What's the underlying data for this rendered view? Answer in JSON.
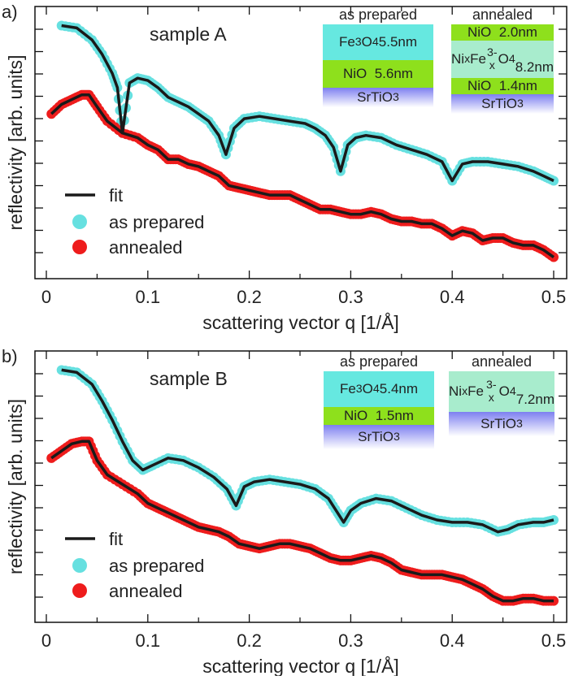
{
  "chart_data": [
    {
      "type": "scatter",
      "panel_label": "a)",
      "title": "sample A",
      "xlabel": "scattering vector q [1/Å]",
      "ylabel": "reflectivity [arb. units]",
      "xlim": [
        0,
        0.5
      ],
      "ylim": [
        0,
        11.4
      ],
      "xticks": [
        "0",
        "0.1",
        "0.2",
        "0.3",
        "0.4",
        "0.5"
      ],
      "xtick_values": [
        0,
        0.1,
        0.2,
        0.3,
        0.4,
        0.5
      ],
      "legend": {
        "position": "bottom-left",
        "fit": "fit",
        "as_prepared": "as prepared",
        "annealed": "annealed"
      },
      "colors": {
        "as_prepared": "#66e0e0",
        "annealed": "#ee1c1c",
        "fit": "#1a1a1a"
      },
      "series": [
        {
          "name": "as prepared",
          "q": [
            0.015,
            0.03,
            0.045,
            0.055,
            0.065,
            0.07,
            0.075,
            0.082,
            0.09,
            0.1,
            0.11,
            0.12,
            0.13,
            0.14,
            0.15,
            0.16,
            0.17,
            0.177,
            0.185,
            0.195,
            0.21,
            0.225,
            0.24,
            0.255,
            0.265,
            0.275,
            0.283,
            0.29,
            0.297,
            0.305,
            0.315,
            0.33,
            0.345,
            0.36,
            0.375,
            0.39,
            0.4,
            0.41,
            0.42,
            0.435,
            0.45,
            0.465,
            0.48,
            0.49,
            0.5
          ],
          "values": [
            10.6,
            10.5,
            10.0,
            9.4,
            8.6,
            8.0,
            6.1,
            8.2,
            8.4,
            8.3,
            8.0,
            7.6,
            7.4,
            7.2,
            6.9,
            6.6,
            6.0,
            5.2,
            6.3,
            6.7,
            6.8,
            6.7,
            6.6,
            6.5,
            6.3,
            6.0,
            5.5,
            4.5,
            5.6,
            5.9,
            6.0,
            5.9,
            5.6,
            5.4,
            5.2,
            4.9,
            4.1,
            4.8,
            4.9,
            4.9,
            4.8,
            4.7,
            4.5,
            4.3,
            4.1
          ]
        },
        {
          "name": "annealed",
          "q": [
            0.005,
            0.015,
            0.025,
            0.035,
            0.042,
            0.05,
            0.06,
            0.075,
            0.09,
            0.1,
            0.11,
            0.12,
            0.13,
            0.14,
            0.15,
            0.16,
            0.17,
            0.18,
            0.19,
            0.2,
            0.21,
            0.22,
            0.23,
            0.24,
            0.25,
            0.26,
            0.27,
            0.28,
            0.29,
            0.3,
            0.31,
            0.32,
            0.33,
            0.34,
            0.35,
            0.36,
            0.37,
            0.38,
            0.39,
            0.4,
            0.41,
            0.42,
            0.43,
            0.44,
            0.45,
            0.46,
            0.47,
            0.48,
            0.49,
            0.5
          ],
          "values": [
            6.9,
            7.3,
            7.5,
            7.7,
            7.7,
            7.2,
            6.6,
            6.1,
            5.9,
            5.6,
            5.4,
            5.0,
            5.0,
            4.8,
            4.7,
            4.5,
            4.3,
            3.9,
            3.8,
            3.7,
            3.6,
            3.5,
            3.5,
            3.5,
            3.3,
            3.1,
            2.9,
            2.9,
            2.8,
            2.7,
            2.7,
            2.8,
            2.7,
            2.5,
            2.4,
            2.4,
            2.3,
            2.3,
            2.1,
            1.8,
            2.0,
            1.9,
            1.6,
            1.7,
            1.7,
            1.5,
            1.4,
            1.4,
            1.2,
            0.9
          ]
        }
      ],
      "insets": [
        {
          "heading": "as prepared",
          "layers": [
            {
              "html": "Fe<sub>3</sub>O<sub>4</sub> 5.5nm",
              "color": "#66e8e0"
            },
            {
              "html": "NiO&nbsp; 5.6nm",
              "color": "#8ee01c"
            },
            {
              "html": "SrTiO<sub>3</sub>",
              "color": "gradient"
            }
          ]
        },
        {
          "heading": "annealed",
          "layers": [
            {
              "html": "NiO&nbsp; 2.0nm",
              "color": "#8ee01c"
            },
            {
              "html": "Ni<sub>x</sub>Fe<sub>3-x</sub>O<sub>4</sub><br>8.2nm",
              "color": "#a8eccd"
            },
            {
              "html": "NiO&nbsp; 1.4nm",
              "color": "#8ee01c"
            },
            {
              "html": "SrTiO<sub>3</sub>",
              "color": "gradient"
            }
          ]
        }
      ]
    },
    {
      "type": "scatter",
      "panel_label": "b)",
      "title": "sample B",
      "xlabel": "scattering vector q [1/Å]",
      "ylabel": "reflectivity [arb. units]",
      "xlim": [
        0,
        0.5
      ],
      "ylim": [
        0,
        11.4
      ],
      "xticks": [
        "0",
        "0.1",
        "0.2",
        "0.3",
        "0.4",
        "0.5"
      ],
      "xtick_values": [
        0,
        0.1,
        0.2,
        0.3,
        0.4,
        0.5
      ],
      "legend": {
        "position": "bottom-left",
        "fit": "fit",
        "as_prepared": "as prepared",
        "annealed": "annealed"
      },
      "colors": {
        "as_prepared": "#66e0e0",
        "annealed": "#ee1c1c",
        "fit": "#1a1a1a"
      },
      "series": [
        {
          "name": "as prepared",
          "q": [
            0.015,
            0.03,
            0.045,
            0.055,
            0.065,
            0.075,
            0.085,
            0.095,
            0.105,
            0.12,
            0.135,
            0.15,
            0.165,
            0.178,
            0.187,
            0.195,
            0.205,
            0.22,
            0.235,
            0.25,
            0.265,
            0.278,
            0.287,
            0.293,
            0.3,
            0.31,
            0.325,
            0.34,
            0.355,
            0.37,
            0.385,
            0.4,
            0.415,
            0.43,
            0.445,
            0.455,
            0.465,
            0.48,
            0.49,
            0.5
          ],
          "values": [
            10.6,
            10.5,
            10.0,
            9.3,
            8.5,
            7.6,
            6.8,
            6.4,
            6.6,
            6.9,
            6.8,
            6.5,
            6.1,
            5.6,
            4.9,
            5.7,
            5.9,
            6.0,
            5.9,
            5.8,
            5.6,
            5.2,
            4.6,
            4.2,
            4.7,
            5.0,
            5.2,
            5.1,
            4.8,
            4.5,
            4.3,
            4.2,
            4.2,
            4.1,
            3.8,
            3.9,
            4.1,
            4.2,
            4.2,
            4.3
          ]
        },
        {
          "name": "annealed",
          "q": [
            0.005,
            0.015,
            0.025,
            0.035,
            0.042,
            0.05,
            0.06,
            0.075,
            0.09,
            0.1,
            0.11,
            0.12,
            0.13,
            0.14,
            0.15,
            0.16,
            0.17,
            0.18,
            0.19,
            0.2,
            0.21,
            0.22,
            0.23,
            0.24,
            0.25,
            0.26,
            0.27,
            0.28,
            0.29,
            0.3,
            0.31,
            0.32,
            0.33,
            0.34,
            0.35,
            0.36,
            0.37,
            0.38,
            0.39,
            0.4,
            0.41,
            0.42,
            0.43,
            0.44,
            0.45,
            0.46,
            0.47,
            0.48,
            0.49,
            0.5
          ],
          "values": [
            6.9,
            7.2,
            7.5,
            7.6,
            7.6,
            6.8,
            6.2,
            5.8,
            5.4,
            5.0,
            4.8,
            4.6,
            4.4,
            4.2,
            4.0,
            3.9,
            3.8,
            3.6,
            3.3,
            3.2,
            3.1,
            3.2,
            3.3,
            3.3,
            3.2,
            3.1,
            2.9,
            2.7,
            2.6,
            2.6,
            2.7,
            2.8,
            2.7,
            2.5,
            2.2,
            2.1,
            2.0,
            2.0,
            2.0,
            1.9,
            1.8,
            1.6,
            1.4,
            1.1,
            0.9,
            0.9,
            1.0,
            1.0,
            0.9,
            0.9
          ]
        }
      ],
      "insets": [
        {
          "heading": "as prepared",
          "layers": [
            {
              "html": "Fe<sub>3</sub>O<sub>4</sub> 5.4nm",
              "color": "#66e8e0"
            },
            {
              "html": "NiO&nbsp; 1.5nm",
              "color": "#8ee01c"
            },
            {
              "html": "SrTiO<sub>3</sub>",
              "color": "gradient"
            }
          ]
        },
        {
          "heading": "annealed",
          "layers": [
            {
              "html": "Ni<sub>x</sub>Fe<sub>3-x</sub>O<sub>4</sub><br>7.2nm",
              "color": "#a8eccd"
            },
            {
              "html": "SrTiO<sub>3</sub>",
              "color": "gradient"
            }
          ]
        }
      ]
    }
  ]
}
